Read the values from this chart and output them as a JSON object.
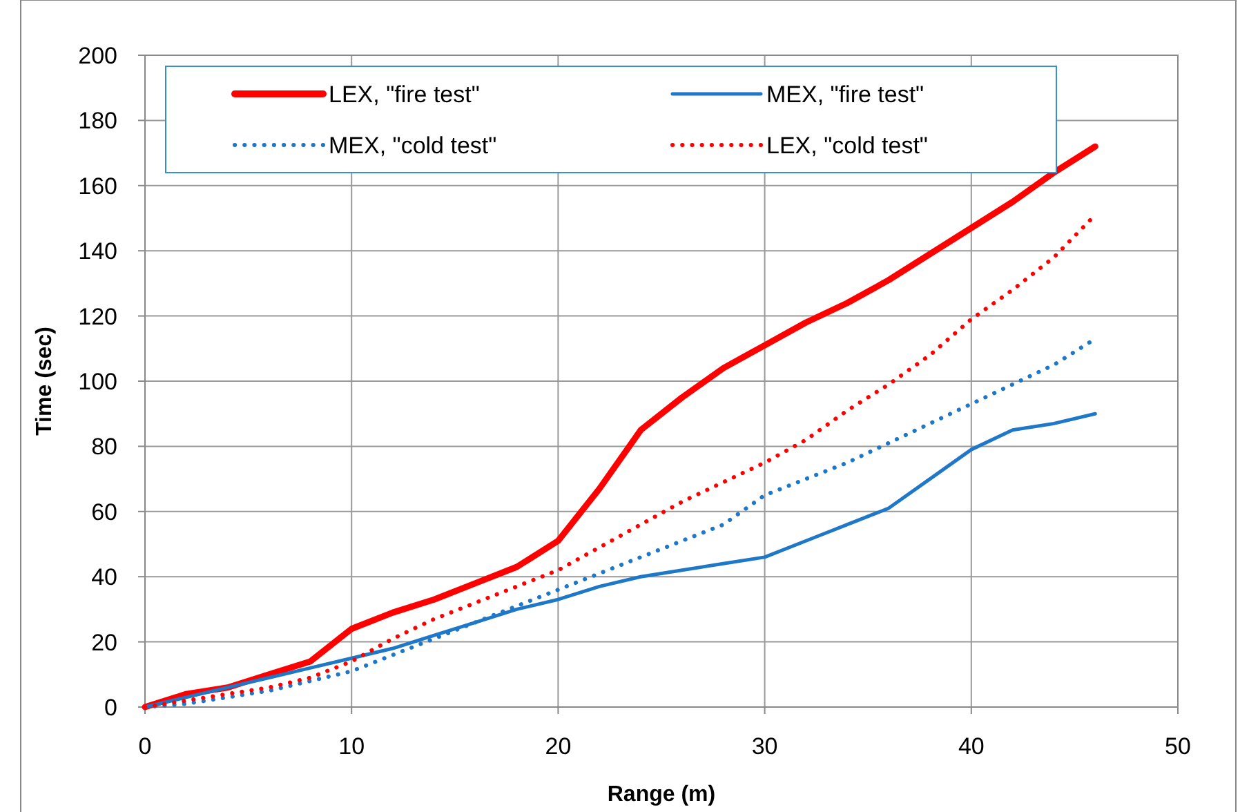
{
  "chart_data": {
    "type": "line",
    "xlabel": "Range (m)",
    "ylabel": "Time (sec)",
    "x": [
      0,
      2,
      4,
      6,
      8,
      10,
      12,
      14,
      16,
      18,
      20,
      22,
      24,
      26,
      28,
      30,
      32,
      34,
      36,
      38,
      40,
      42,
      44,
      46
    ],
    "xlim": [
      0,
      50
    ],
    "xticks": [
      0,
      10,
      20,
      30,
      40,
      50
    ],
    "ylim": [
      0,
      200
    ],
    "yticks": [
      0,
      20,
      40,
      60,
      80,
      100,
      120,
      140,
      160,
      180,
      200
    ],
    "grid": true,
    "legend": "top",
    "marker": "none",
    "series": [
      {
        "name": "LEX, \"fire test\"",
        "color": "#ff0000",
        "line_style": "solid",
        "values": [
          0,
          4,
          6,
          10,
          14,
          24,
          29,
          33,
          38,
          43,
          51,
          67,
          85,
          95,
          104,
          111,
          118,
          124,
          131,
          139,
          147,
          155,
          164,
          172
        ]
      },
      {
        "name": "MEX, \"fire test\"",
        "color": "#1f77c8",
        "line_style": "solid",
        "values": [
          0,
          3,
          6,
          9,
          12,
          15,
          18,
          22,
          26,
          30,
          33,
          37,
          40,
          42,
          44,
          46,
          51,
          56,
          61,
          70,
          79,
          85,
          87,
          90
        ]
      },
      {
        "name": "MEX, \"cold test\"",
        "color": "#1f77c8",
        "line_style": "dotted",
        "values": [
          0,
          1,
          3,
          5,
          8,
          11,
          16,
          21,
          26,
          31,
          36,
          41,
          46,
          51,
          56,
          65,
          70,
          75,
          81,
          87,
          93,
          99,
          105,
          113
        ]
      },
      {
        "name": "LEX, \"cold test\"",
        "color": "#ff0000",
        "line_style": "dotted",
        "values": [
          0,
          2,
          4,
          6,
          9,
          14,
          21,
          27,
          32,
          37,
          42,
          49,
          56,
          63,
          69,
          75,
          82,
          91,
          99,
          108,
          119,
          128,
          138,
          151
        ]
      }
    ]
  }
}
